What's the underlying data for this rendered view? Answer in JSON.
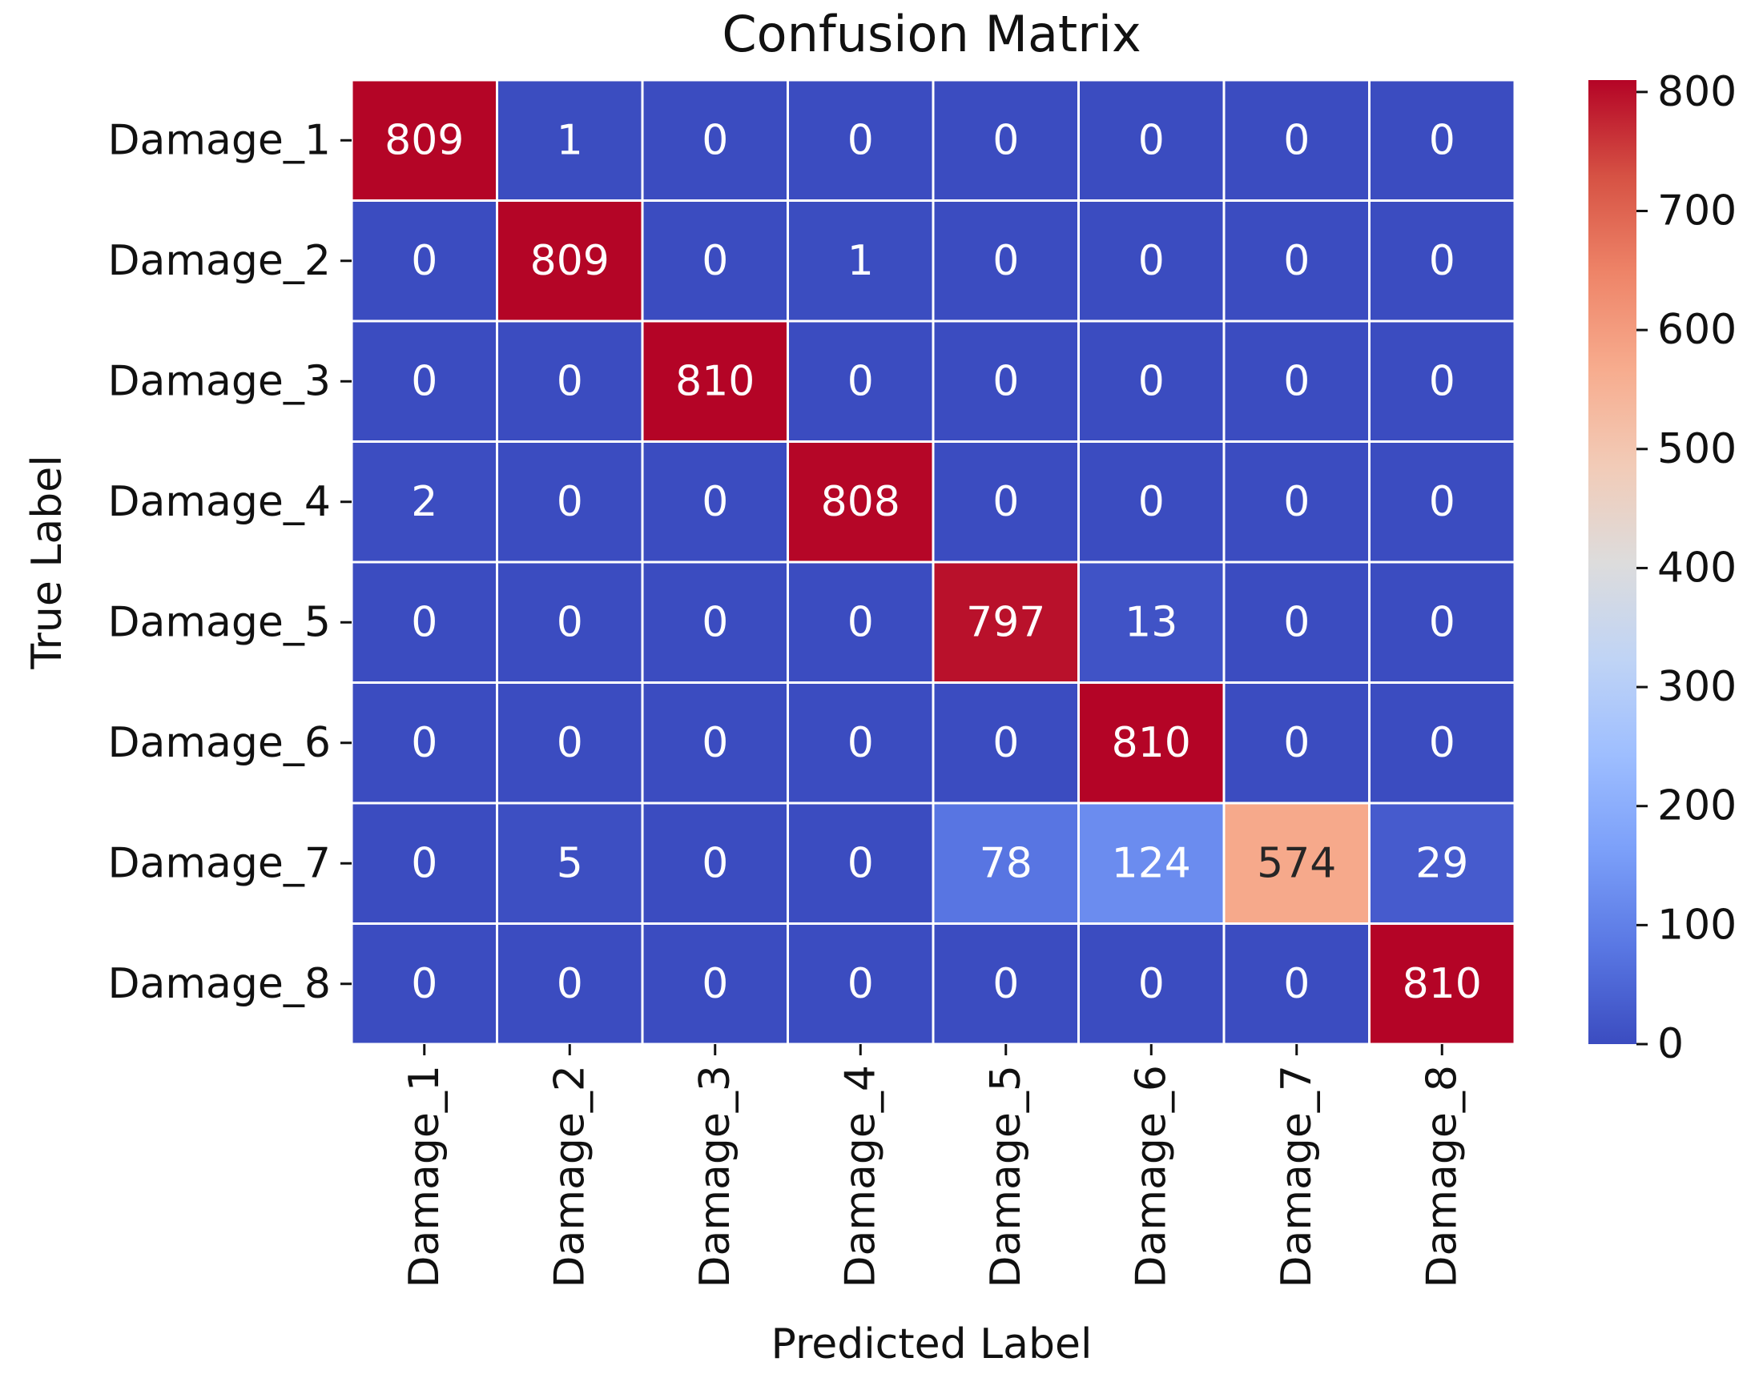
{
  "chart_data": {
    "type": "heatmap",
    "title": "Confusion Matrix",
    "xlabel": "Predicted Label",
    "ylabel": "True Label",
    "x_categories": [
      "Damage_1",
      "Damage_2",
      "Damage_3",
      "Damage_4",
      "Damage_5",
      "Damage_6",
      "Damage_7",
      "Damage_8"
    ],
    "y_categories": [
      "Damage_1",
      "Damage_2",
      "Damage_3",
      "Damage_4",
      "Damage_5",
      "Damage_6",
      "Damage_7",
      "Damage_8"
    ],
    "values": [
      [
        809,
        1,
        0,
        0,
        0,
        0,
        0,
        0
      ],
      [
        0,
        809,
        0,
        1,
        0,
        0,
        0,
        0
      ],
      [
        0,
        0,
        810,
        0,
        0,
        0,
        0,
        0
      ],
      [
        2,
        0,
        0,
        808,
        0,
        0,
        0,
        0
      ],
      [
        0,
        0,
        0,
        0,
        797,
        13,
        0,
        0
      ],
      [
        0,
        0,
        0,
        0,
        0,
        810,
        0,
        0
      ],
      [
        0,
        5,
        0,
        0,
        78,
        124,
        574,
        29
      ],
      [
        0,
        0,
        0,
        0,
        0,
        0,
        0,
        810
      ]
    ],
    "colormap": "coolwarm",
    "colormap_stops": [
      "#3b4cc0",
      "#5977e3",
      "#7b9ff9",
      "#9ebeff",
      "#c0d4f5",
      "#dddcdc",
      "#f2cbb7",
      "#f7ac8e",
      "#ee8468",
      "#d65244",
      "#b40426"
    ],
    "vmin": 0,
    "vmax": 810,
    "colorbar_ticks": [
      0,
      100,
      200,
      300,
      400,
      500,
      600,
      700,
      800
    ],
    "cell_separator_color": "#ffffff",
    "annotation_light_color": "#ffffff",
    "annotation_dark_color": "#262626"
  }
}
